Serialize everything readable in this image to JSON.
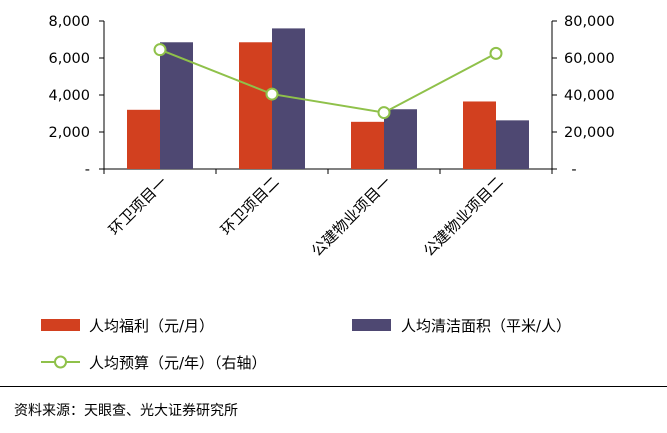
{
  "chart_data": {
    "type": "bar",
    "categories": [
      "环卫项目一",
      "环卫项目二",
      "公建物业项目一",
      "公建物业项目二"
    ],
    "series": [
      {
        "name": "人均福利（元/月）",
        "type": "bar",
        "axis": "left",
        "color": "#d2401f",
        "values": [
          3200,
          6850,
          2550,
          3650
        ]
      },
      {
        "name": "人均清洁面积（平米/人）",
        "type": "bar",
        "axis": "right",
        "color": "#4e4872",
        "values": [
          68500,
          76000,
          32300,
          26300
        ]
      },
      {
        "name": "人均预算（元/年）（右轴）",
        "type": "line",
        "axis": "right",
        "color": "#8fc14a",
        "values": [
          64500,
          40500,
          30500,
          62500
        ]
      }
    ],
    "yleft": {
      "min": 0,
      "max": 8000,
      "ticks": [
        0,
        2000,
        4000,
        6000,
        8000
      ],
      "tick_labels": [
        "-",
        "2,000",
        "4,000",
        "6,000",
        "8,000"
      ]
    },
    "yright": {
      "min": 0,
      "max": 80000,
      "ticks": [
        0,
        20000,
        40000,
        60000,
        80000
      ],
      "tick_labels": [
        "-",
        "20,000",
        "40,000",
        "60,000",
        "80,000"
      ]
    },
    "grid": false,
    "legend_position": "bottom"
  },
  "footer": {
    "source": "资料来源：天眼查、光大证券研究所"
  }
}
